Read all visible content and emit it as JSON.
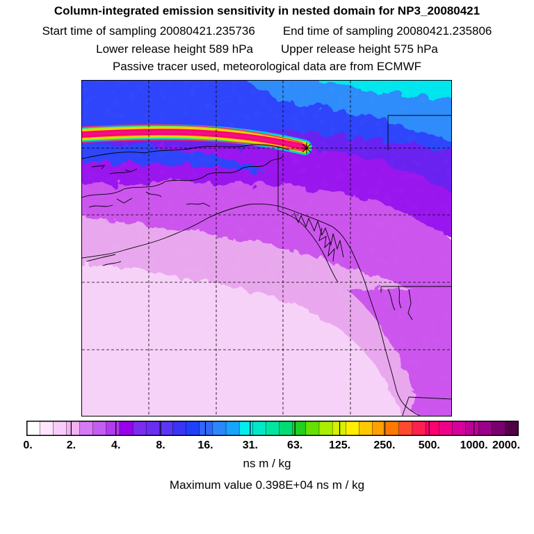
{
  "header": {
    "title": "Column-integrated emission sensitivity in nested domain for NP3_20080421",
    "start_time": "Start time of sampling 20080421.235736",
    "end_time": "End time of sampling 20080421.235806",
    "lower_release": "Lower release height  589 hPa",
    "upper_release": "Upper release height  575 hPa",
    "tracer_note": "Passive tracer used, meteorological data are from ECMWF"
  },
  "colorbar": {
    "colors": [
      "#ffffff",
      "#fde6fd",
      "#f8ccf8",
      "#f2b2f2",
      "#d879f5",
      "#c45ef2",
      "#b23bef",
      "#9900ee",
      "#7b2cf0",
      "#6a2df2",
      "#5a36f5",
      "#3a34f8",
      "#1f40fb",
      "#2e68fb",
      "#2a88fb",
      "#17a4fb",
      "#00eeee",
      "#00e8c8",
      "#00e6a0",
      "#00dd73",
      "#20d020",
      "#66e000",
      "#aaee00",
      "#d6f000",
      "#ffee00",
      "#ffc800",
      "#ffa000",
      "#ff7800",
      "#ff4a2e",
      "#ff2050",
      "#ff0070",
      "#f00088",
      "#d8009c",
      "#bc0098",
      "#9a0088",
      "#7a0070",
      "#520048"
    ],
    "tick_labels": [
      "0.",
      "2.",
      "4.",
      "8.",
      "16.",
      "31.",
      "63.",
      "125.",
      "250.",
      "500.",
      "1000.",
      "2000."
    ],
    "unit_label": "ns m / kg"
  },
  "max_value_text": "Maximum value  0.398E+04 ns m / kg",
  "map": {
    "field_colors": {
      "white": "#ffffff",
      "light_pink": "#f7d2f8",
      "pink": "#e9a8ee",
      "magenta": "#cc55ee",
      "purple": "#9a12ee",
      "violet": "#6a22f0",
      "blue": "#2f44fb",
      "sky": "#2e8cfb",
      "cyan": "#00e6ee"
    }
  }
}
